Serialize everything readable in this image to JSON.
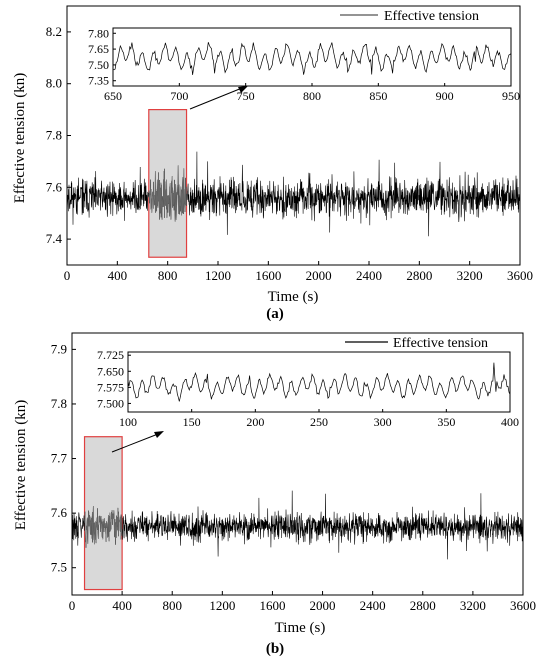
{
  "chart_data": [
    {
      "id": "a",
      "type": "line",
      "panel_label": "(a)",
      "xlabel": "Time (s)",
      "ylabel": "Effective tension (kn)",
      "xlim": [
        0,
        3600
      ],
      "ylim": [
        7.3,
        8.3
      ],
      "xticks": [
        0,
        400,
        800,
        1200,
        1600,
        2000,
        2400,
        2800,
        3200,
        3600
      ],
      "yticks": [
        7.4,
        7.6,
        7.8,
        8.0,
        8.2
      ],
      "highlight_range": [
        650,
        950
      ],
      "series": [
        {
          "name": "Effective tension",
          "color": "#000000",
          "mean": 7.56,
          "min": 7.36,
          "max": 7.87,
          "highlight_min": 7.35,
          "highlight_max": 7.88
        }
      ],
      "inset": {
        "xlim": [
          650,
          950
        ],
        "ylim": [
          7.3,
          7.85
        ],
        "xticks": [
          650,
          700,
          750,
          800,
          850,
          900,
          950
        ],
        "yticks": [
          7.35,
          7.5,
          7.65,
          7.8
        ],
        "ytick_labels": [
          "7.35",
          "7.50",
          "7.65",
          "7.80"
        ],
        "mean": 7.57,
        "min": 7.36,
        "max": 7.82
      }
    },
    {
      "id": "b",
      "type": "line",
      "panel_label": "(b)",
      "xlabel": "Time (s)",
      "ylabel": "Effective tension (kn)",
      "xlim": [
        0,
        3600
      ],
      "ylim": [
        7.45,
        7.93
      ],
      "xticks": [
        0,
        400,
        800,
        1200,
        1600,
        2000,
        2400,
        2800,
        3200,
        3600
      ],
      "yticks": [
        7.5,
        7.6,
        7.7,
        7.8,
        7.9
      ],
      "highlight_range": [
        100,
        400
      ],
      "series": [
        {
          "name": "Effective tension",
          "color": "#000000",
          "mean": 7.575,
          "min": 7.51,
          "max": 7.7,
          "highlight_min": 7.48,
          "highlight_max": 7.72
        }
      ],
      "inset": {
        "xlim": [
          100,
          400
        ],
        "ylim": [
          7.46,
          7.74
        ],
        "xticks": [
          100,
          150,
          200,
          250,
          300,
          350,
          400
        ],
        "yticks": [
          7.5,
          7.575,
          7.65,
          7.725
        ],
        "ytick_labels": [
          "7.500",
          "7.575",
          "7.650",
          "7.725"
        ],
        "mean": 7.58,
        "min": 7.49,
        "max": 7.69
      }
    }
  ]
}
